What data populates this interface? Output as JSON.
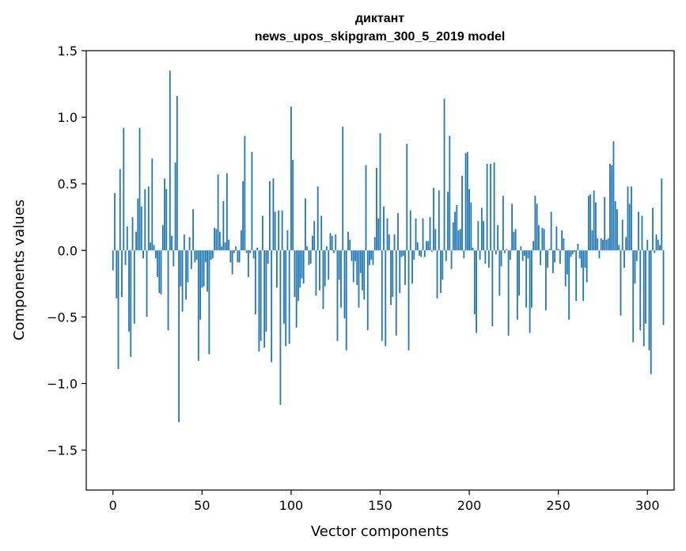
{
  "chart_data": {
    "type": "bar",
    "title_line1": "диктант",
    "title_line2": "news_upos_skipgram_300_5_2019 model",
    "xlabel": "Vector components",
    "ylabel": "Components values",
    "xlim": [
      -15,
      315
    ],
    "ylim": [
      -1.8,
      1.5
    ],
    "xticks": [
      0,
      50,
      100,
      150,
      200,
      250,
      300
    ],
    "xtick_labels": [
      "0",
      "50",
      "100",
      "150",
      "200",
      "250",
      "300"
    ],
    "yticks": [
      1.5,
      1.0,
      0.5,
      0.0,
      -0.5,
      -1.0,
      -1.5
    ],
    "ytick_labels": [
      "1.5",
      "1.0",
      "0.5",
      "0.0",
      "−0.5",
      "−1.0",
      "−1.5"
    ],
    "bar_color": "#1f77b4",
    "values": [
      -0.15,
      0.43,
      -0.36,
      -0.89,
      0.61,
      -0.35,
      0.92,
      -0.11,
      0.18,
      -0.61,
      -0.8,
      0.25,
      -0.55,
      0.14,
      0.39,
      0.92,
      0.33,
      -0.06,
      0.46,
      -0.5,
      0.48,
      0.06,
      0.69,
      0.04,
      -0.06,
      -0.2,
      -0.32,
      -0.33,
      0.19,
      0.54,
      0.46,
      -0.6,
      1.35,
      0.11,
      -0.12,
      0.66,
      1.16,
      -1.29,
      -0.27,
      -0.46,
      0.12,
      -0.37,
      -0.24,
      0.1,
      -0.14,
      0.31,
      -0.09,
      -0.07,
      -0.83,
      -0.52,
      -0.28,
      -0.27,
      -0.09,
      -0.31,
      -0.78,
      -0.07,
      -0.06,
      0.17,
      0.16,
      0.57,
      0.14,
      0.03,
      0.37,
      0.06,
      0.58,
      0.08,
      -0.09,
      -0.18,
      -0.02,
      0.03,
      -0.09,
      -0.09,
      0.15,
      0.52,
      0.86,
      -0.02,
      -0.2,
      -0.02,
      0.74,
      -0.06,
      -0.48,
      0.02,
      -0.76,
      -0.68,
      0.26,
      -0.73,
      -0.61,
      -0.1,
      0.52,
      -0.84,
      0.54,
      0.29,
      -0.28,
      0.3,
      -1.16,
      0.3,
      -0.55,
      -0.72,
      0.15,
      -0.7,
      1.08,
      0.68,
      -0.35,
      -0.58,
      -0.38,
      -0.28,
      -0.21,
      -0.25,
      0.39,
      0.03,
      -0.11,
      -0.1,
      0.11,
      0.22,
      -0.34,
      0.48,
      -0.3,
      0.26,
      -0.44,
      -0.27,
      0.03,
      -0.22,
      0.13,
      0.11,
      -0.02,
      0.12,
      -0.68,
      -0.22,
      -0.43,
      0.93,
      -0.51,
      -0.75,
      0.14,
      0.08,
      -0.08,
      -0.24,
      -0.08,
      -0.26,
      -0.43,
      -0.17,
      -0.3,
      -0.37,
      0.64,
      -0.6,
      -0.11,
      -0.07,
      -0.11,
      0.1,
      0.62,
      0.24,
      0.88,
      -0.68,
      0.33,
      -0.72,
      0.24,
      0.12,
      -0.41,
      -0.35,
      0.12,
      -0.64,
      0.28,
      -0.32,
      -0.05,
      -0.04,
      -0.26,
      0.8,
      -0.75,
      0.3,
      -0.25,
      -0.07,
      0.24,
      0.06,
      -0.04,
      -0.05,
      0.24,
      -0.05,
      0.07,
      0.07,
      0.25,
      -0.01,
      0.47,
      0.16,
      -0.36,
      0.45,
      -0.32,
      -0.22,
      1.14,
      -0.08,
      0.44,
      0.86,
      -0.14,
      0.21,
      0.29,
      0.34,
      0.15,
      0.16,
      0.56,
      -0.06,
      0.73,
      0.74,
      0.46,
      0.36,
      0.02,
      -0.48,
      -0.62,
      0.22,
      -0.07,
      0.32,
      0.22,
      -0.1,
      0.65,
      -0.13,
      0.65,
      -0.57,
      0.66,
      -0.03,
      0.19,
      -0.34,
      -0.12,
      0.41,
      -0.02,
      0.01,
      -0.64,
      -0.07,
      0.35,
      0.14,
      0.16,
      -0.52,
      -0.34,
      0.03,
      -0.08,
      -0.04,
      -0.43,
      -0.06,
      -0.62,
      -0.43,
      0.07,
      0.41,
      0.35,
      0.19,
      -0.11,
      0.17,
      0.16,
      -0.45,
      -0.13,
      0.01,
      0.29,
      -0.17,
      -0.09,
      0.18,
      0.01,
      -0.1,
      0.15,
      0.09,
      -0.27,
      -0.18,
      -0.52,
      -0.05,
      -0.03,
      -0.01,
      -0.38,
      0.05,
      -0.06,
      -0.13,
      -0.38,
      -0.13,
      -0.24,
      0.41,
      0.42,
      0.15,
      0.45,
      0.36,
      0.09,
      -0.06,
      0.09,
      0.08,
      0.4,
      0.08,
      0.09,
      0.65,
      0.64,
      0.82,
      0.37,
      0.31,
      0.04,
      -0.49,
      0.23,
      -0.13,
      0.1,
      0.48,
      0.35,
      0.48,
      -0.69,
      -0.25,
      -0.08,
      0.29,
      -0.6,
      0.26,
      -0.72,
      -0.55,
      0.08,
      -0.75,
      -0.93,
      0.32,
      -0.02,
      0.12,
      0.08,
      0.04,
      0.54,
      -0.56
    ]
  }
}
